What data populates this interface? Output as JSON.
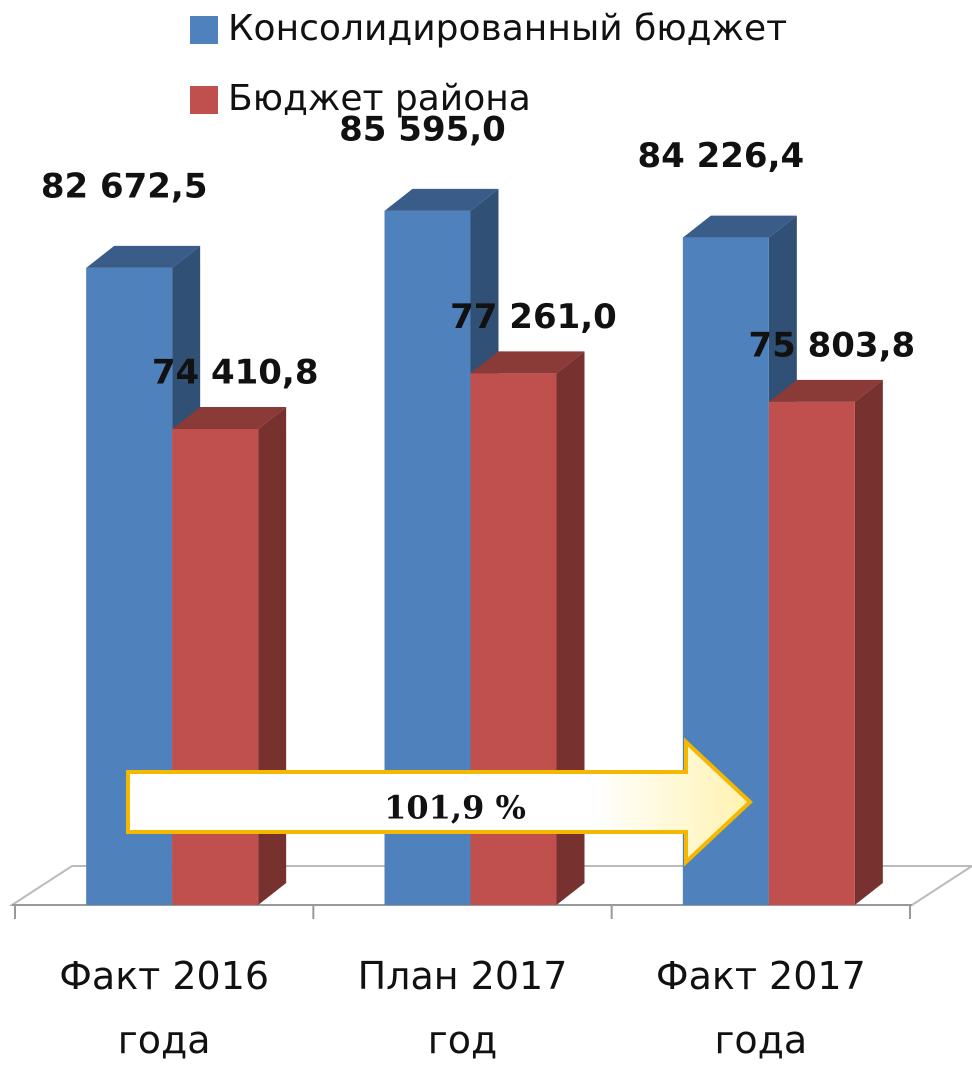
{
  "chart_data": {
    "type": "bar3d",
    "categories": [
      "Факт 2016 года",
      "План 2017 год",
      "Факт 2017 года"
    ],
    "series": [
      {
        "name": "Консолидированный бюджет",
        "color": "#4f81bd",
        "values": [
          82672.5,
          85595.0,
          84226.4
        ],
        "value_labels": [
          "82 672,5",
          "85 595,0",
          "84 226,4"
        ]
      },
      {
        "name": "Бюджет района",
        "color": "#c0504d",
        "values": [
          74410.8,
          77261.0,
          75803.8
        ],
        "value_labels": [
          "74 410,8",
          "77 261,0",
          "75 803,8"
        ]
      }
    ],
    "ylim": [
      50000,
      90000
    ],
    "annotation": "101,9 %"
  }
}
